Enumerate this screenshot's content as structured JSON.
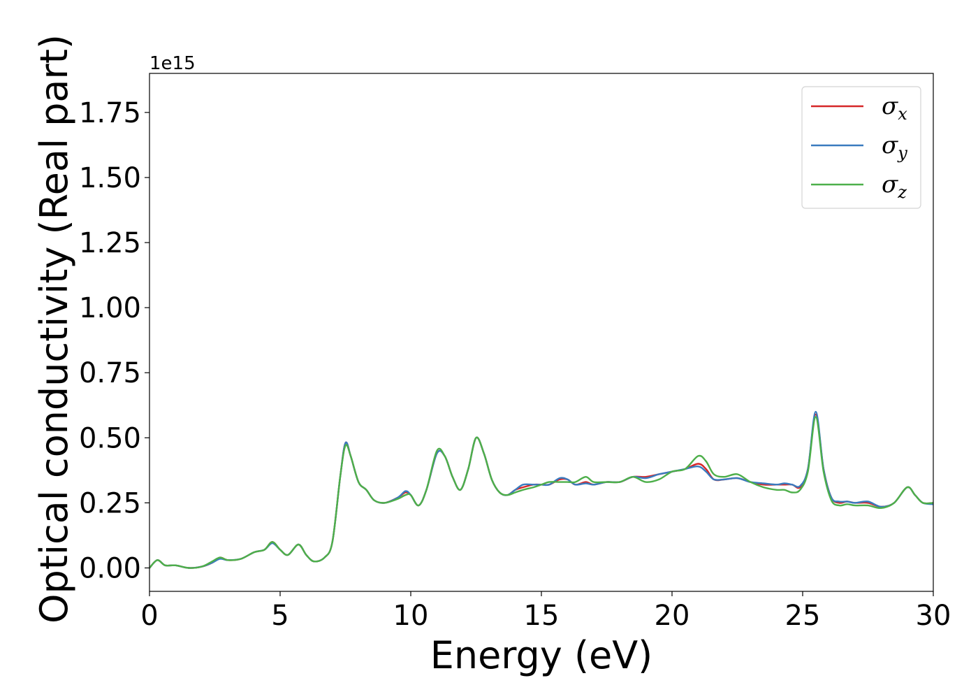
{
  "chart_data": {
    "type": "line",
    "xlabel": "Energy (eV)",
    "ylabel": "Optical conductivity (Real part)",
    "y_offset_label": "1e15",
    "xlim": [
      0,
      30
    ],
    "ylim": [
      -0.09,
      1.9
    ],
    "x_ticks": [
      0,
      5,
      10,
      15,
      20,
      25,
      30
    ],
    "x_tick_labels": [
      "0",
      "5",
      "10",
      "15",
      "20",
      "25",
      "30"
    ],
    "y_ticks": [
      0.0,
      0.25,
      0.5,
      0.75,
      1.0,
      1.25,
      1.5,
      1.75
    ],
    "y_tick_labels": [
      "0.00",
      "0.25",
      "0.50",
      "0.75",
      "1.00",
      "1.25",
      "1.50",
      "1.75"
    ],
    "grid": false,
    "legend_position": "top-right",
    "series": [
      {
        "name": "σx",
        "legend_symbol": "σ",
        "legend_sub": "x",
        "color": "#d62728",
        "x": [
          0,
          0.3,
          0.6,
          1.0,
          1.5,
          2.0,
          2.4,
          2.7,
          3.0,
          3.5,
          4.0,
          4.4,
          4.7,
          5.0,
          5.3,
          5.7,
          6.0,
          6.3,
          6.7,
          7.0,
          7.3,
          7.5,
          7.7,
          8.0,
          8.3,
          8.6,
          9.0,
          9.5,
          9.8,
          10.0,
          10.3,
          10.6,
          11.0,
          11.3,
          11.6,
          11.9,
          12.2,
          12.5,
          12.8,
          13.1,
          13.4,
          13.7,
          14.0,
          14.3,
          14.7,
          15.0,
          15.3,
          15.7,
          16.0,
          16.3,
          16.7,
          17.0,
          17.5,
          18.0,
          18.5,
          19.0,
          19.5,
          20.0,
          20.5,
          21.0,
          21.3,
          21.6,
          22.0,
          22.5,
          23.0,
          23.5,
          24.0,
          24.3,
          24.6,
          24.9,
          25.2,
          25.5,
          25.8,
          26.1,
          26.4,
          26.7,
          27.0,
          27.5,
          28.0,
          28.5,
          29.0,
          29.3,
          29.6,
          30.0
        ],
        "y": [
          0.0,
          0.03,
          0.01,
          0.01,
          0.0,
          0.005,
          0.02,
          0.04,
          0.03,
          0.035,
          0.06,
          0.07,
          0.1,
          0.07,
          0.05,
          0.09,
          0.05,
          0.025,
          0.04,
          0.1,
          0.35,
          0.48,
          0.43,
          0.33,
          0.3,
          0.26,
          0.25,
          0.27,
          0.29,
          0.28,
          0.24,
          0.3,
          0.44,
          0.43,
          0.35,
          0.3,
          0.38,
          0.5,
          0.44,
          0.34,
          0.29,
          0.28,
          0.3,
          0.31,
          0.32,
          0.32,
          0.32,
          0.34,
          0.34,
          0.32,
          0.33,
          0.32,
          0.33,
          0.33,
          0.35,
          0.35,
          0.36,
          0.37,
          0.38,
          0.4,
          0.38,
          0.34,
          0.34,
          0.345,
          0.33,
          0.32,
          0.32,
          0.32,
          0.32,
          0.31,
          0.38,
          0.59,
          0.38,
          0.27,
          0.25,
          0.255,
          0.25,
          0.25,
          0.235,
          0.25,
          0.31,
          0.28,
          0.25,
          0.25
        ]
      },
      {
        "name": "σy",
        "legend_symbol": "σ",
        "legend_sub": "y",
        "color": "#3a7bbf",
        "x": [
          0,
          0.3,
          0.6,
          1.0,
          1.5,
          2.0,
          2.4,
          2.7,
          3.0,
          3.5,
          4.0,
          4.4,
          4.7,
          5.0,
          5.3,
          5.7,
          6.0,
          6.3,
          6.7,
          7.0,
          7.3,
          7.5,
          7.7,
          8.0,
          8.3,
          8.6,
          9.0,
          9.5,
          9.8,
          10.0,
          10.3,
          10.6,
          11.0,
          11.3,
          11.6,
          11.9,
          12.2,
          12.5,
          12.8,
          13.1,
          13.4,
          13.7,
          14.0,
          14.3,
          14.7,
          15.0,
          15.3,
          15.7,
          16.0,
          16.3,
          16.7,
          17.0,
          17.5,
          18.0,
          18.5,
          19.0,
          19.5,
          20.0,
          20.5,
          21.0,
          21.3,
          21.6,
          22.0,
          22.5,
          23.0,
          23.5,
          24.0,
          24.3,
          24.6,
          24.9,
          25.2,
          25.5,
          25.8,
          26.1,
          26.4,
          26.7,
          27.0,
          27.5,
          28.0,
          28.5,
          29.0,
          29.3,
          29.6,
          30.0
        ],
        "y": [
          0.0,
          0.03,
          0.01,
          0.01,
          0.0,
          0.005,
          0.02,
          0.035,
          0.03,
          0.035,
          0.06,
          0.07,
          0.095,
          0.07,
          0.05,
          0.09,
          0.05,
          0.025,
          0.04,
          0.1,
          0.35,
          0.48,
          0.43,
          0.33,
          0.3,
          0.26,
          0.25,
          0.27,
          0.295,
          0.28,
          0.24,
          0.3,
          0.44,
          0.43,
          0.35,
          0.3,
          0.38,
          0.5,
          0.44,
          0.34,
          0.29,
          0.28,
          0.3,
          0.32,
          0.32,
          0.32,
          0.32,
          0.345,
          0.34,
          0.32,
          0.325,
          0.32,
          0.33,
          0.33,
          0.35,
          0.345,
          0.36,
          0.37,
          0.38,
          0.39,
          0.37,
          0.34,
          0.34,
          0.345,
          0.33,
          0.325,
          0.32,
          0.325,
          0.32,
          0.315,
          0.38,
          0.6,
          0.38,
          0.27,
          0.255,
          0.255,
          0.25,
          0.255,
          0.235,
          0.25,
          0.31,
          0.28,
          0.25,
          0.245
        ]
      },
      {
        "name": "σz",
        "legend_symbol": "σ",
        "legend_sub": "z",
        "color": "#4daf4a",
        "x": [
          0,
          0.3,
          0.6,
          1.0,
          1.5,
          2.0,
          2.4,
          2.7,
          3.0,
          3.5,
          4.0,
          4.4,
          4.7,
          5.0,
          5.3,
          5.7,
          6.0,
          6.3,
          6.7,
          7.0,
          7.3,
          7.5,
          7.7,
          8.0,
          8.3,
          8.6,
          9.0,
          9.5,
          9.8,
          10.0,
          10.3,
          10.6,
          11.0,
          11.3,
          11.6,
          11.9,
          12.2,
          12.5,
          12.8,
          13.1,
          13.4,
          13.7,
          14.0,
          14.3,
          14.7,
          15.0,
          15.3,
          15.7,
          16.0,
          16.3,
          16.7,
          17.0,
          17.5,
          18.0,
          18.5,
          19.0,
          19.5,
          20.0,
          20.5,
          21.0,
          21.3,
          21.6,
          22.0,
          22.5,
          23.0,
          23.5,
          24.0,
          24.3,
          24.6,
          24.9,
          25.2,
          25.5,
          25.8,
          26.1,
          26.4,
          26.7,
          27.0,
          27.5,
          28.0,
          28.5,
          29.0,
          29.3,
          29.6,
          30.0
        ],
        "y": [
          0.0,
          0.03,
          0.01,
          0.01,
          0.0,
          0.005,
          0.025,
          0.04,
          0.03,
          0.035,
          0.06,
          0.07,
          0.1,
          0.07,
          0.05,
          0.09,
          0.05,
          0.025,
          0.04,
          0.1,
          0.35,
          0.47,
          0.43,
          0.33,
          0.3,
          0.26,
          0.25,
          0.265,
          0.28,
          0.28,
          0.24,
          0.3,
          0.45,
          0.43,
          0.35,
          0.3,
          0.38,
          0.5,
          0.44,
          0.34,
          0.29,
          0.28,
          0.29,
          0.3,
          0.31,
          0.32,
          0.33,
          0.33,
          0.33,
          0.33,
          0.35,
          0.33,
          0.33,
          0.33,
          0.35,
          0.33,
          0.34,
          0.37,
          0.38,
          0.43,
          0.41,
          0.36,
          0.35,
          0.36,
          0.33,
          0.31,
          0.3,
          0.3,
          0.29,
          0.3,
          0.37,
          0.58,
          0.37,
          0.26,
          0.24,
          0.245,
          0.24,
          0.24,
          0.23,
          0.25,
          0.31,
          0.28,
          0.25,
          0.25
        ]
      }
    ]
  }
}
